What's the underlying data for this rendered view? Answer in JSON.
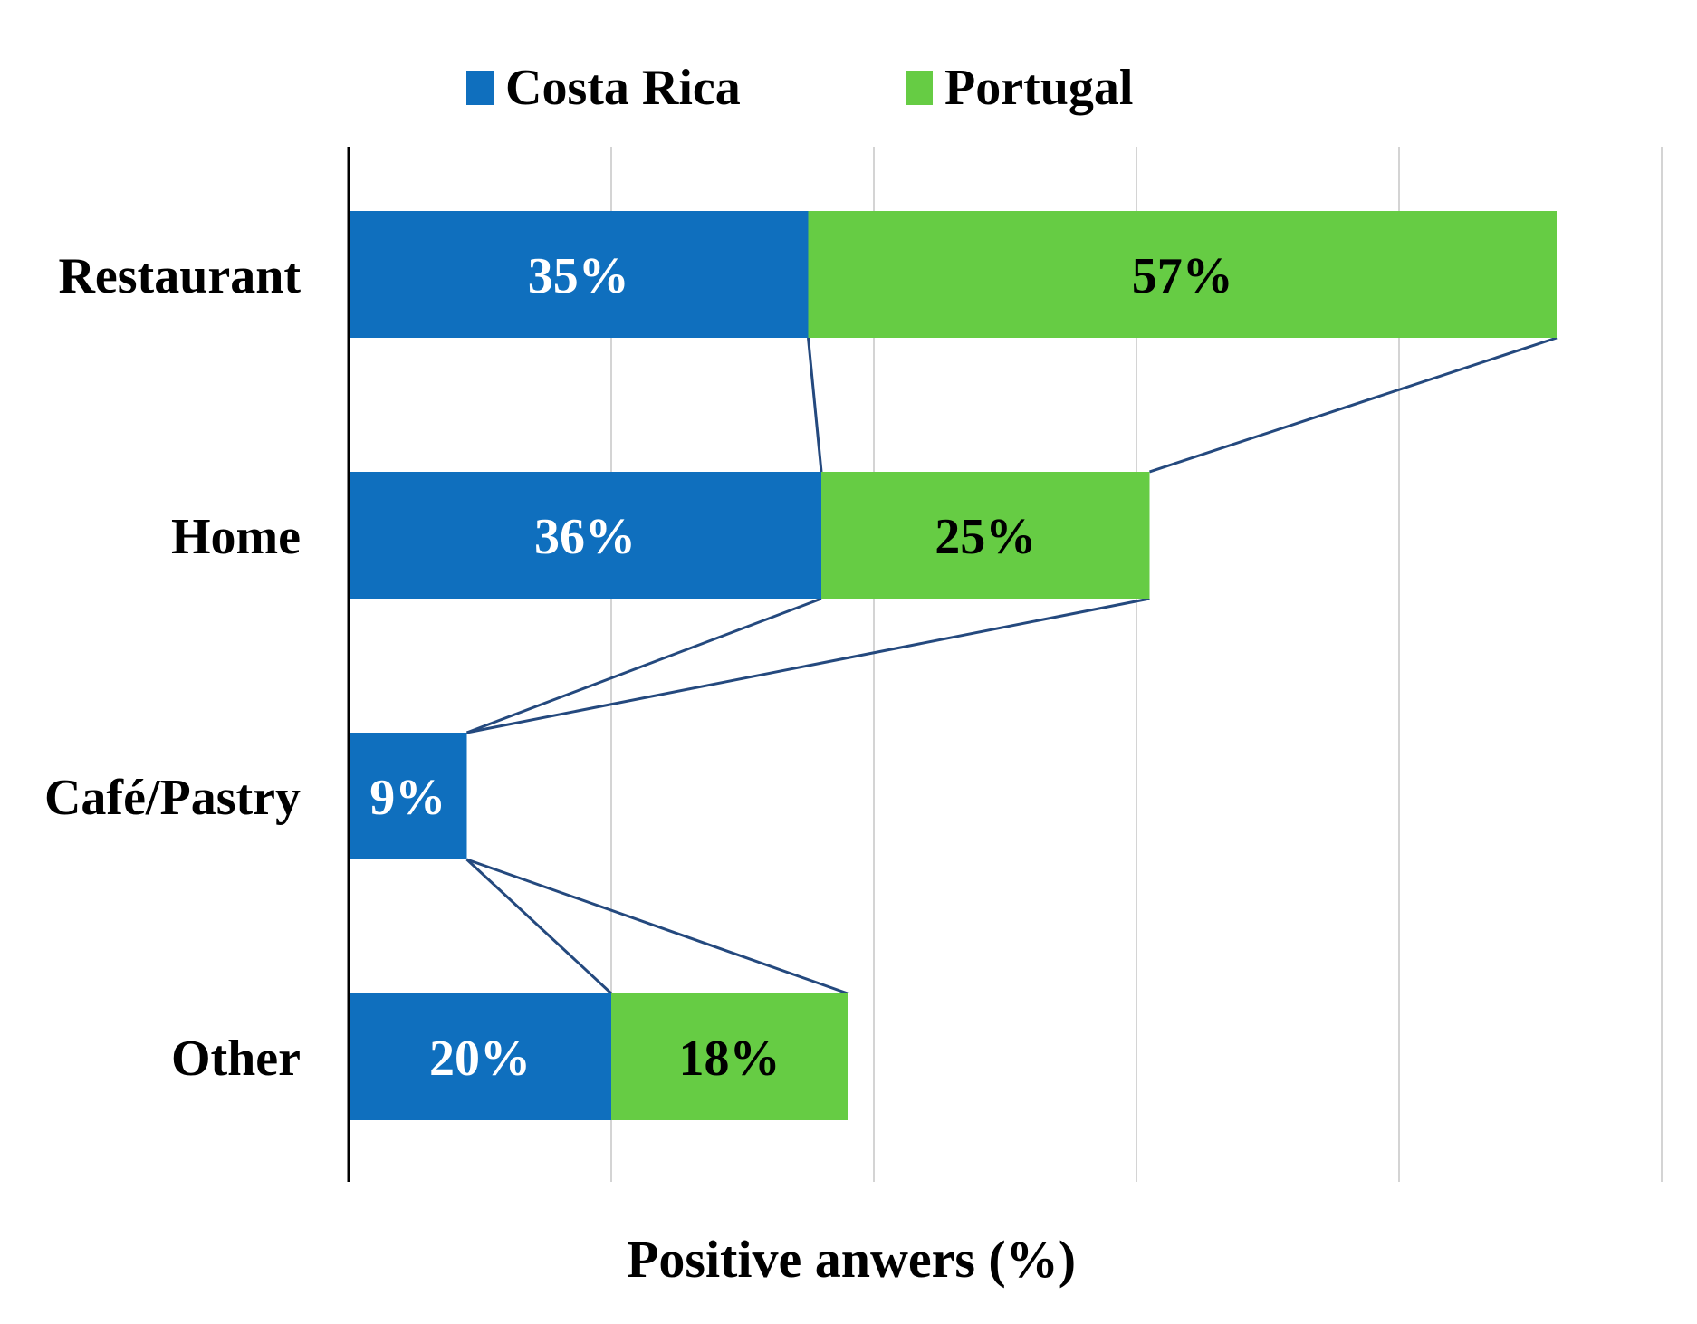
{
  "chart_data": {
    "type": "bar",
    "orientation": "horizontal",
    "stacked": true,
    "title": "",
    "xlabel": "Positive anwers (%)",
    "ylabel": "",
    "xlim": [
      0,
      100
    ],
    "grid": true,
    "legend_position": "top",
    "categories": [
      "Restaurant",
      "Home",
      "Café/Pastry",
      "Other"
    ],
    "series": [
      {
        "name": "Costa Rica",
        "color": "#0f6fbe",
        "label_color": "#ffffff",
        "values": [
          35,
          36,
          9,
          20
        ],
        "labels": [
          "35%",
          "36%",
          "9%",
          "20%"
        ]
      },
      {
        "name": "Portugal",
        "color": "#66cc44",
        "label_color": "#000000",
        "values": [
          57,
          25,
          0,
          18
        ],
        "labels": [
          "57%",
          "25%",
          "",
          "18%"
        ]
      }
    ],
    "connector_color": "#24497e"
  }
}
